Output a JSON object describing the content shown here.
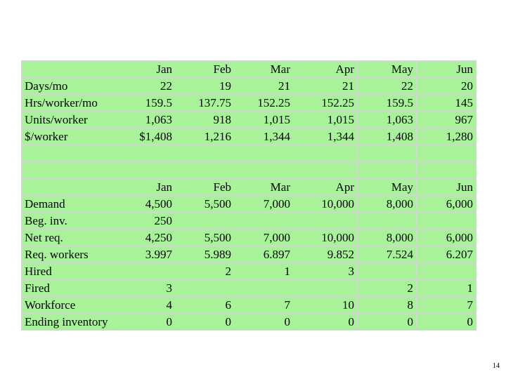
{
  "slide": {
    "page_number": "14"
  },
  "months": [
    "Jan",
    "Feb",
    "Mar",
    "Apr",
    "May",
    "Jun"
  ],
  "top_table": {
    "rows": [
      {
        "label": "Days/mo",
        "values": [
          "22",
          "19",
          "21",
          "21",
          "22",
          "20"
        ]
      },
      {
        "label": "Hrs/worker/mo",
        "values": [
          "159.5",
          "137.75",
          "152.25",
          "152.25",
          "159.5",
          "145"
        ]
      },
      {
        "label": "Units/worker",
        "values": [
          "1,063",
          "918",
          "1,015",
          "1,015",
          "1,063",
          "967"
        ]
      },
      {
        "label": "$/worker",
        "values": [
          "$1,408",
          "1,216",
          "1,344",
          "1,344",
          "1,408",
          "1,280"
        ]
      }
    ]
  },
  "bottom_table": {
    "rows": [
      {
        "label": "Demand",
        "values": [
          "4,500",
          "5,500",
          "7,000",
          "10,000",
          "8,000",
          "6,000"
        ]
      },
      {
        "label": "Beg. inv.",
        "values": [
          "250",
          "",
          "",
          "",
          "",
          ""
        ]
      },
      {
        "label": "Net req.",
        "values": [
          "4,250",
          "5,500",
          "7,000",
          "10,000",
          "8,000",
          "6,000"
        ]
      },
      {
        "label": "Req. workers",
        "values": [
          "3.997",
          "5.989",
          "6.897",
          "9.852",
          "7.524",
          "6.207"
        ]
      },
      {
        "label": "Hired",
        "values": [
          "",
          "2",
          "1",
          "3",
          "",
          ""
        ]
      },
      {
        "label": "Fired",
        "values": [
          "3",
          "",
          "",
          "",
          "2",
          "1"
        ]
      },
      {
        "label": "Workforce",
        "values": [
          "4",
          "6",
          "7",
          "10",
          "8",
          "7"
        ]
      },
      {
        "label": "Ending inventory",
        "values": [
          "0",
          "0",
          "0",
          "0",
          "0",
          "0"
        ]
      }
    ]
  },
  "colors": {
    "cell_fill": "#a8f29a",
    "grid": "#d6d6d6"
  }
}
